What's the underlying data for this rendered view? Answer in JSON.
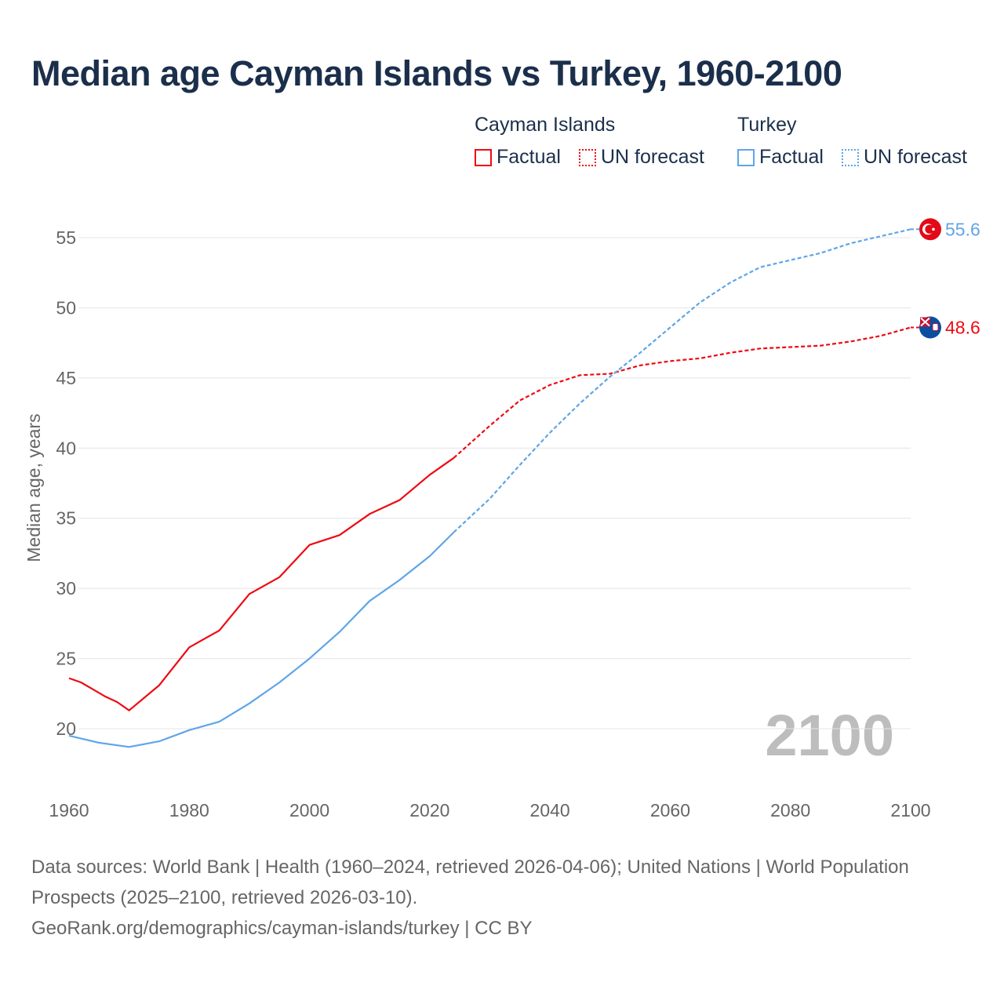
{
  "title": "Median age Cayman Islands vs Turkey, 1960-2100",
  "legend": {
    "groups": [
      {
        "name": "Cayman Islands",
        "color": "#ee0a12",
        "items": [
          "Factual",
          "UN forecast"
        ]
      },
      {
        "name": "Turkey",
        "color": "#5fa5e8",
        "items": [
          "Factual",
          "UN forecast"
        ]
      }
    ]
  },
  "year_watermark": "2100",
  "footer": {
    "line1": "Data sources: World Bank | Health (1960–2024, retrieved 2026-04-06); United Nations | World Population Prospects (2025–2100, retrieved 2026-03-10).",
    "line2": "GeoRank.org/demographics/cayman-islands/turkey | CC BY"
  },
  "chart_data": {
    "type": "line",
    "title": "Median age Cayman Islands vs Turkey, 1960-2100",
    "xlabel": "",
    "ylabel": "Median age, years",
    "xlim": [
      1960,
      2100
    ],
    "ylim": [
      16.5,
      58
    ],
    "xticks": [
      "1960",
      "1980",
      "2000",
      "2020",
      "2040",
      "2060",
      "2080",
      "2100"
    ],
    "yticks": [
      "20",
      "25",
      "30",
      "35",
      "40",
      "45",
      "50",
      "55"
    ],
    "grid": true,
    "factual_until": 2024,
    "series": [
      {
        "name": "Cayman Islands",
        "color": "#ee0a12",
        "end_label": "48.6",
        "x": [
          1960,
          1962,
          1964,
          1966,
          1968,
          1970,
          1975,
          1980,
          1985,
          1990,
          1995,
          2000,
          2005,
          2010,
          2015,
          2020,
          2024,
          2030,
          2035,
          2040,
          2045,
          2050,
          2055,
          2060,
          2065,
          2070,
          2075,
          2080,
          2085,
          2090,
          2095,
          2100
        ],
        "y": [
          23.6,
          23.3,
          22.8,
          22.3,
          21.9,
          21.3,
          23.1,
          25.8,
          27.0,
          29.6,
          30.8,
          33.1,
          33.8,
          35.3,
          36.3,
          38.1,
          39.3,
          41.6,
          43.4,
          44.5,
          45.2,
          45.3,
          45.9,
          46.2,
          46.4,
          46.8,
          47.1,
          47.2,
          47.3,
          47.6,
          48.0,
          48.6
        ]
      },
      {
        "name": "Turkey",
        "color": "#5fa5e8",
        "end_label": "55.6",
        "x": [
          1960,
          1965,
          1970,
          1975,
          1980,
          1985,
          1990,
          1995,
          2000,
          2005,
          2010,
          2015,
          2020,
          2024,
          2030,
          2035,
          2040,
          2045,
          2050,
          2055,
          2060,
          2065,
          2070,
          2075,
          2080,
          2085,
          2090,
          2095,
          2100
        ],
        "y": [
          19.5,
          19.0,
          18.7,
          19.1,
          19.9,
          20.5,
          21.8,
          23.3,
          25.0,
          26.9,
          29.1,
          30.6,
          32.3,
          34.0,
          36.4,
          38.8,
          41.1,
          43.2,
          45.1,
          46.8,
          48.6,
          50.4,
          51.8,
          52.9,
          53.4,
          53.9,
          54.6,
          55.1,
          55.6
        ]
      }
    ]
  }
}
